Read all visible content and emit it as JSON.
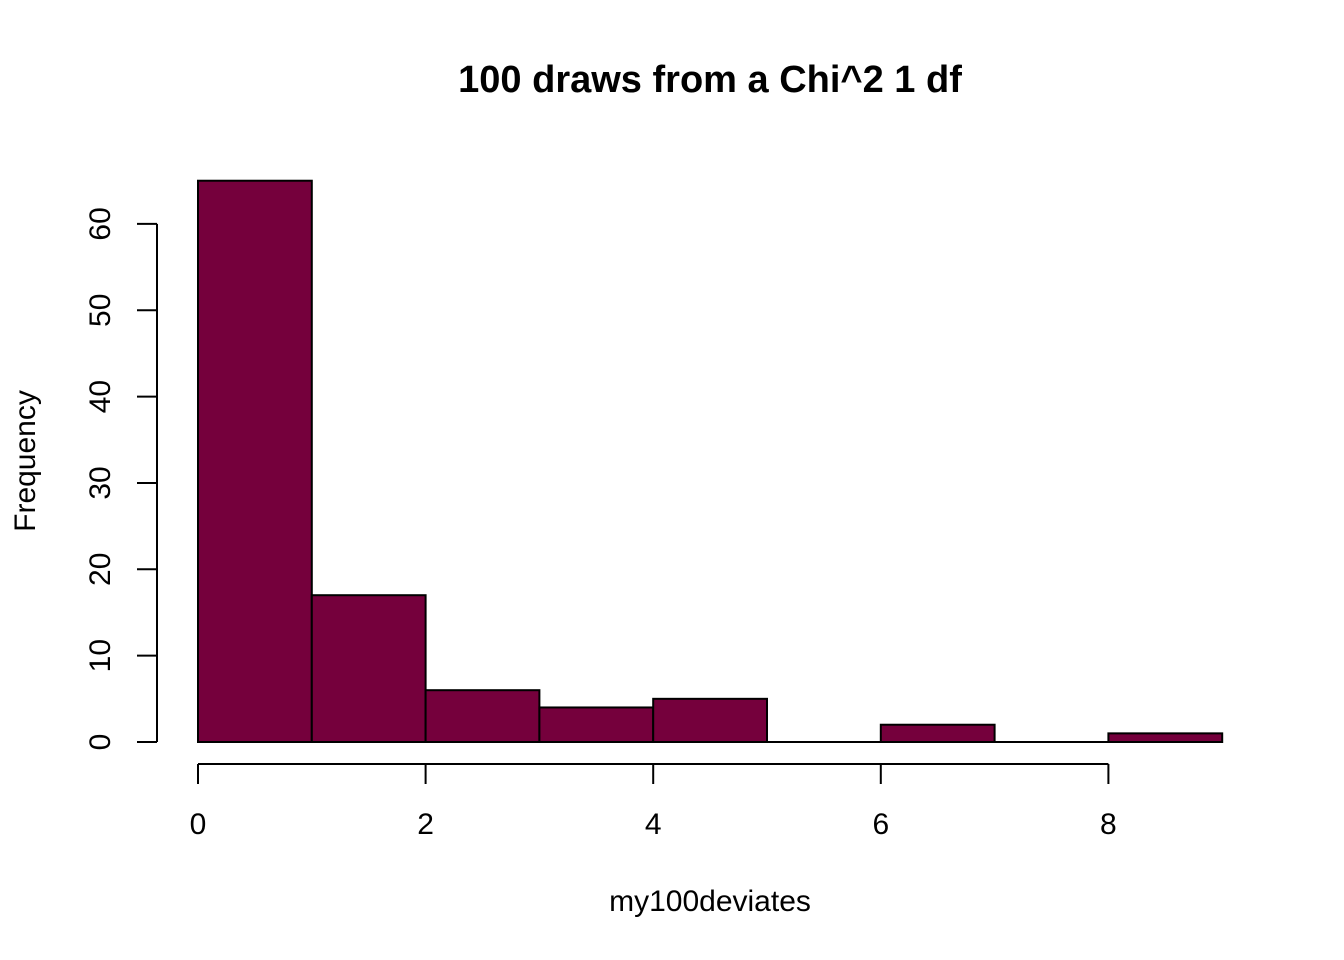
{
  "chart_data": {
    "type": "bar",
    "title": "100 draws from a Chi^2 1 df",
    "xlabel": "my100deviates",
    "ylabel": "Frequency",
    "bins": [
      {
        "start": 0,
        "end": 1,
        "count": 65
      },
      {
        "start": 1,
        "end": 2,
        "count": 17
      },
      {
        "start": 2,
        "end": 3,
        "count": 6
      },
      {
        "start": 3,
        "end": 4,
        "count": 4
      },
      {
        "start": 4,
        "end": 5,
        "count": 5
      },
      {
        "start": 5,
        "end": 6,
        "count": 0
      },
      {
        "start": 6,
        "end": 7,
        "count": 2
      },
      {
        "start": 7,
        "end": 8,
        "count": 0
      },
      {
        "start": 8,
        "end": 9,
        "count": 1
      }
    ],
    "xlim": [
      0,
      9
    ],
    "ylim": [
      0,
      65
    ],
    "x_ticks": [
      "0",
      "2",
      "4",
      "6",
      "8"
    ],
    "y_ticks": [
      "0",
      "10",
      "20",
      "30",
      "40",
      "50",
      "60"
    ],
    "bar_color": "#75003C",
    "grid": false,
    "legend": "none"
  }
}
